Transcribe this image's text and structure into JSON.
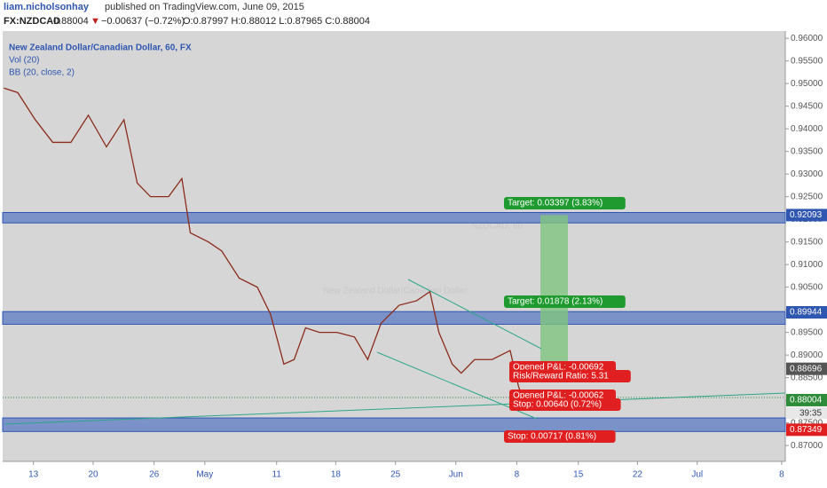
{
  "header": {
    "author": "liam.nicholsonhay",
    "published": "published on TradingView.com, June 09, 2015",
    "symbol": "FX:NZDCAD",
    "last": "0.88004",
    "arrow": "▼",
    "change": "−0.00637 (−0.72%)",
    "ohlc": "O:0.87997 H:0.88012 L:0.87965 C:0.88004"
  },
  "chart_data": {
    "type": "line",
    "title": "New Zealand Dollar/Canadian Dollar, 60, FX",
    "indicators": [
      "Vol (20)",
      "BB (20, close, 2)"
    ],
    "watermark": [
      "NZDCAD, 60",
      "New Zealand Dollar/Canadian Dollar"
    ],
    "series": [
      {
        "color": "#8b2c1c",
        "x": [
          -0.49,
          -0.26,
          0.03,
          0.32,
          0.62,
          0.91,
          1.21,
          1.5,
          1.72,
          1.94,
          2.24,
          2.46,
          2.6,
          2.9,
          3.12,
          3.41,
          3.71,
          3.93,
          4.15,
          4.32,
          4.51,
          4.74,
          5.03,
          5.32,
          5.54,
          5.76,
          6.06,
          6.35,
          6.57,
          6.72,
          6.94,
          7.09,
          7.31,
          7.6,
          7.9,
          8.04,
          8.15,
          8.24
        ],
        "values": [
          0.949,
          0.948,
          0.942,
          0.937,
          0.937,
          0.943,
          0.936,
          0.942,
          0.928,
          0.925,
          0.925,
          0.929,
          0.917,
          0.915,
          0.913,
          0.907,
          0.905,
          0.899,
          0.888,
          0.889,
          0.896,
          0.895,
          0.895,
          0.894,
          0.889,
          0.897,
          0.901,
          0.902,
          0.904,
          0.895,
          0.888,
          0.886,
          0.889,
          0.889,
          0.891,
          0.883,
          0.879,
          0.88
        ]
      }
    ],
    "xlim": [
      -0.51,
      12.46
    ],
    "xticks": [
      {
        "value": 0,
        "label": "13"
      },
      {
        "value": 0.99,
        "label": "20"
      },
      {
        "value": 2.0,
        "label": "26"
      },
      {
        "value": 2.84,
        "label": "May"
      },
      {
        "value": 4.03,
        "label": "11"
      },
      {
        "value": 5.01,
        "label": "18"
      },
      {
        "value": 6.0,
        "label": "25"
      },
      {
        "value": 7.0,
        "label": "Jun"
      },
      {
        "value": 8.01,
        "label": "8"
      },
      {
        "value": 9.03,
        "label": "15"
      },
      {
        "value": 10.01,
        "label": "22"
      },
      {
        "value": 11.0,
        "label": "Jul"
      },
      {
        "value": 12.4,
        "label": "8"
      }
    ],
    "ylim": [
      0.8665,
      0.9616
    ],
    "yticks": [
      {
        "value": 0.87,
        "label": "0.87000"
      },
      {
        "value": 0.875,
        "label": "0.87500"
      },
      {
        "value": 0.88,
        "label": "0.88000"
      },
      {
        "value": 0.885,
        "label": "0.88500"
      },
      {
        "value": 0.89,
        "label": "0.89000"
      },
      {
        "value": 0.895,
        "label": "0.89500"
      },
      {
        "value": 0.9,
        "label": "0.90000"
      },
      {
        "value": 0.905,
        "label": "0.90500"
      },
      {
        "value": 0.91,
        "label": "0.91000"
      },
      {
        "value": 0.915,
        "label": "0.91500"
      },
      {
        "value": 0.92,
        "label": "0.92000"
      },
      {
        "value": 0.925,
        "label": "0.92500"
      },
      {
        "value": 0.93,
        "label": "0.93000"
      },
      {
        "value": 0.935,
        "label": "0.93500"
      },
      {
        "value": 0.94,
        "label": "0.94000"
      },
      {
        "value": 0.945,
        "label": "0.94500"
      },
      {
        "value": 0.95,
        "label": "0.95000"
      },
      {
        "value": 0.955,
        "label": "0.95500"
      },
      {
        "value": 0.96,
        "label": "0.96000"
      }
    ],
    "zones": [
      {
        "top": 0.9215,
        "bottom": 0.9192
      },
      {
        "top": 0.8996,
        "bottom": 0.8968
      },
      {
        "top": 0.8761,
        "bottom": 0.8731
      }
    ],
    "price_tags": [
      {
        "value": 0.92093,
        "color": "#2f56b0"
      },
      {
        "value": 0.89944,
        "color": "#2f56b0"
      },
      {
        "value": 0.88696,
        "color": "#555555"
      },
      {
        "value": 0.88004,
        "color": "#2e8b3a"
      },
      {
        "value": 0.87349,
        "color": "#e02020"
      }
    ],
    "countdown": "39:35",
    "annotations": [
      "Target: 0.03397 (3.83%)",
      "Target: 0.01878 (2.13%)",
      "Opened P&L: -0.00692",
      "Risk/Reward Ratio: 5.31",
      "Opened P&L: -0.00062",
      "Stop: 0.00640 (0.72%)",
      "Stop: 0.00717 (0.81%)"
    ]
  }
}
